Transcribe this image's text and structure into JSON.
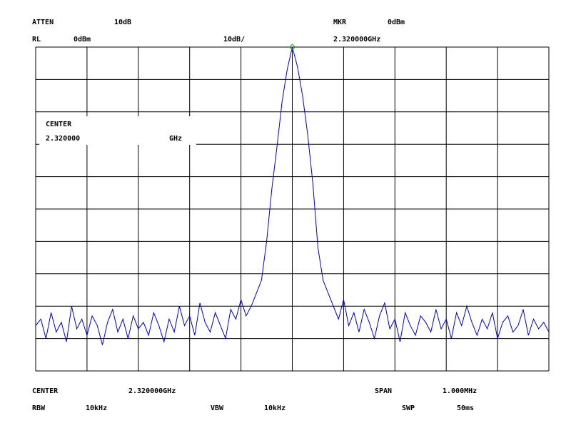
{
  "chart_data": {
    "type": "line",
    "x": [
      2.3195,
      2.31951,
      2.31952,
      2.31953,
      2.31954,
      2.31955,
      2.31956,
      2.31957,
      2.31958,
      2.31959,
      2.3196,
      2.31961,
      2.31962,
      2.31963,
      2.31964,
      2.31965,
      2.31966,
      2.31967,
      2.31968,
      2.31969,
      2.3197,
      2.31971,
      2.31972,
      2.31973,
      2.31974,
      2.31975,
      2.31976,
      2.31977,
      2.31978,
      2.31979,
      2.3198,
      2.31981,
      2.31982,
      2.31983,
      2.31984,
      2.31985,
      2.31986,
      2.31987,
      2.31988,
      2.31989,
      2.3199,
      2.31991,
      2.31992,
      2.31993,
      2.31994,
      2.31995,
      2.31996,
      2.31997,
      2.31998,
      2.31999,
      2.32,
      2.32001,
      2.32002,
      2.32003,
      2.32004,
      2.32005,
      2.32006,
      2.32007,
      2.32008,
      2.32009,
      2.3201,
      2.32011,
      2.32012,
      2.32013,
      2.32014,
      2.32015,
      2.32016,
      2.32017,
      2.32018,
      2.32019,
      2.3202,
      2.32021,
      2.32022,
      2.32023,
      2.32024,
      2.32025,
      2.32026,
      2.32027,
      2.32028,
      2.32029,
      2.3203,
      2.32031,
      2.32032,
      2.32033,
      2.32034,
      2.32035,
      2.32036,
      2.32037,
      2.32038,
      2.32039,
      2.3204,
      2.32041,
      2.32042,
      2.32043,
      2.32044,
      2.32045,
      2.32046,
      2.32047,
      2.32048,
      2.32049,
      2.3205
    ],
    "series": [
      {
        "color": "#0000cc",
        "values": [
          -86,
          -84,
          -90,
          -82,
          -88,
          -85,
          -91,
          -80,
          -87,
          -84,
          -89,
          -83,
          -86,
          -92,
          -85,
          -81,
          -88,
          -84,
          -90,
          -83,
          -87,
          -85,
          -89,
          -82,
          -86,
          -91,
          -84,
          -88,
          -80,
          -86,
          -83,
          -89,
          -79,
          -85,
          -88,
          -82,
          -86,
          -90,
          -81,
          -84,
          -78,
          -83,
          -80,
          -76,
          -72,
          -60,
          -44,
          -31,
          -17,
          -7,
          0,
          -6,
          -15,
          -27,
          -42,
          -62,
          -72,
          -76,
          -80,
          -84,
          -78,
          -86,
          -82,
          -88,
          -81,
          -85,
          -90,
          -83,
          -79,
          -87,
          -84,
          -91,
          -82,
          -86,
          -89,
          -83,
          -85,
          -88,
          -81,
          -87,
          -84,
          -90,
          -82,
          -86,
          -80,
          -85,
          -89,
          -84,
          -87,
          -82,
          -90,
          -85,
          -83,
          -88,
          -86,
          -81,
          -89,
          -84,
          -87,
          -85,
          -88
        ]
      }
    ],
    "marker_index": 50,
    "marker_color": "#22aa22",
    "xlim": [
      2.3195,
      2.3205
    ],
    "ylim": [
      -100,
      0
    ],
    "xticks": [
      2.3195,
      2.3196,
      2.3197,
      2.3198,
      2.3199,
      2.32,
      2.3201,
      2.3202,
      2.3203,
      2.3204,
      2.3205
    ],
    "yticks": [
      0,
      -10,
      -20,
      -30,
      -40,
      -50,
      -60,
      -70,
      -80,
      -90,
      -100
    ],
    "grid": true,
    "header": {
      "atten_label": "ATTEN",
      "atten": "10dB",
      "mkr_label": "MKR",
      "mkr": "0dBm",
      "rl_label": "RL",
      "rl": "0dBm",
      "scale": "10dB/",
      "mkr_freq": "2.320000GHz"
    },
    "entry": {
      "label": "CENTER",
      "value": "2.320000",
      "unit": "GHz"
    },
    "footer": {
      "center_label": "CENTER",
      "center": "2.320000GHz",
      "span_label": "SPAN",
      "span": "1.000MHz",
      "rbw_label": "RBW",
      "rbw": "10kHz",
      "vbw_label": "VBW",
      "vbw": "10kHz",
      "swp_label": "SWP",
      "swp": "50ms"
    }
  }
}
